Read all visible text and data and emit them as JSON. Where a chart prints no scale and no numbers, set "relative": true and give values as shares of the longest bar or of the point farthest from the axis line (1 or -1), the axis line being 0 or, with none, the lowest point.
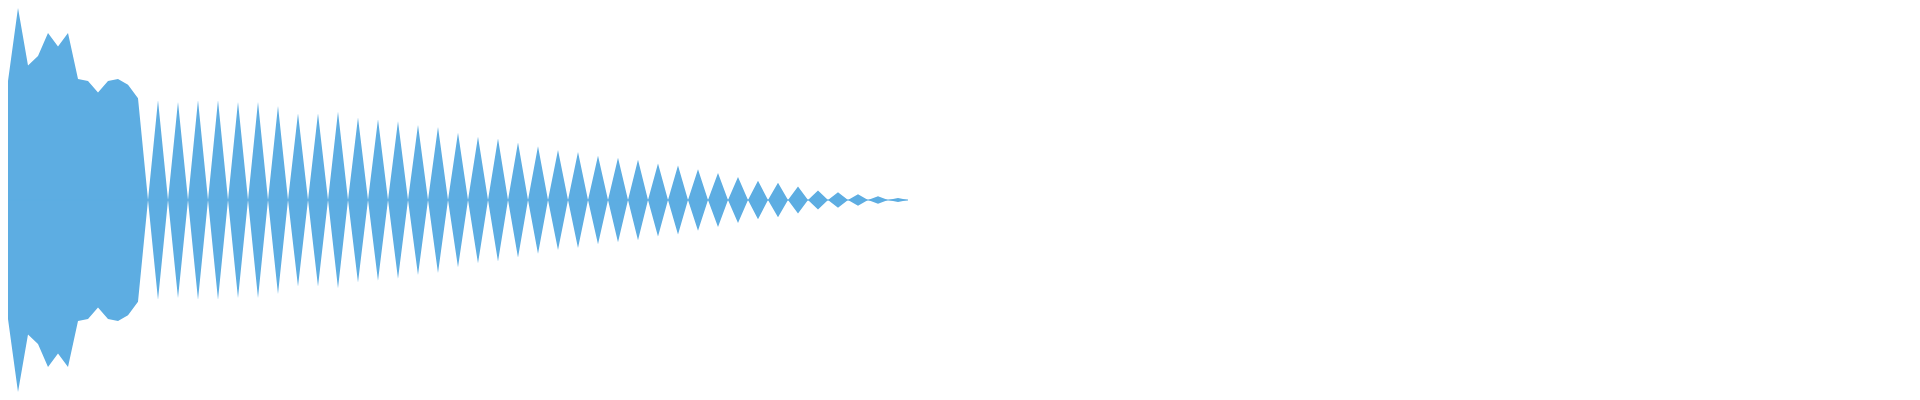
{
  "chart_data": {
    "type": "area",
    "relative": true,
    "ref_lines": [
      {
        "axis": "y",
        "value": 0,
        "color": "#5dade2"
      }
    ],
    "categories": [
      null,
      null,
      null,
      null,
      null,
      null,
      null,
      null,
      null,
      null,
      null,
      null,
      null,
      null,
      null,
      null,
      null,
      null,
      null,
      null,
      null,
      null,
      null,
      null,
      null,
      null,
      null,
      null,
      null,
      null,
      null,
      null,
      null,
      null,
      null,
      null,
      null,
      null,
      null,
      null,
      null,
      null,
      null,
      null,
      null,
      null,
      null,
      null,
      null,
      null,
      null,
      null,
      null,
      null,
      null,
      null,
      null,
      null,
      null,
      null,
      null,
      null,
      null,
      null,
      null,
      null,
      null,
      null,
      null,
      null,
      null,
      null,
      null,
      null,
      null,
      null,
      null,
      null,
      null,
      null,
      null,
      null,
      null,
      null,
      null,
      null,
      null,
      null,
      null,
      null,
      null
    ],
    "series": [
      {
        "color": "#5dade2",
        "values": [
          0.62,
          1.0,
          0.7,
          0.75,
          0.87,
          0.8,
          0.87,
          0.63,
          0.62,
          0.56,
          0.62,
          0.63,
          0.6,
          0.53,
          0,
          0.52,
          0,
          0.51,
          0,
          0.52,
          0,
          0.52,
          0,
          0.51,
          0,
          0.51,
          0,
          0.49,
          0,
          0.45,
          0,
          0.45,
          0,
          0.46,
          0,
          0.43,
          0,
          0.42,
          0,
          0.41,
          0,
          0.39,
          0,
          0.38,
          0,
          0.35,
          0,
          0.33,
          0,
          0.32,
          0,
          0.3,
          0,
          0.28,
          0,
          0.26,
          0,
          0.25,
          0,
          0.23,
          0,
          0.22,
          0,
          0.21,
          0,
          0.19,
          0,
          0.18,
          0,
          0.16,
          0,
          0.14,
          0,
          0.12,
          0,
          0.1,
          0,
          0.09,
          0,
          0.07,
          0,
          0.05,
          0,
          0.04,
          0,
          0.03,
          0,
          0.02,
          0,
          0.01,
          0
        ]
      },
      {
        "color": "#5dade2",
        "values": [
          -0.62,
          -1.0,
          -0.7,
          -0.75,
          -0.87,
          -0.8,
          -0.87,
          -0.63,
          -0.62,
          -0.56,
          -0.62,
          -0.63,
          -0.6,
          -0.53,
          0,
          -0.52,
          0,
          -0.51,
          0,
          -0.52,
          0,
          -0.52,
          0,
          -0.51,
          0,
          -0.51,
          0,
          -0.49,
          0,
          -0.45,
          0,
          -0.45,
          0,
          -0.46,
          0,
          -0.43,
          0,
          -0.42,
          0,
          -0.41,
          0,
          -0.39,
          0,
          -0.38,
          0,
          -0.35,
          0,
          -0.33,
          0,
          -0.32,
          0,
          -0.3,
          0,
          -0.28,
          0,
          -0.26,
          0,
          -0.25,
          0,
          -0.23,
          0,
          -0.22,
          0,
          -0.21,
          0,
          -0.19,
          0,
          -0.18,
          0,
          -0.16,
          0,
          -0.14,
          0,
          -0.12,
          0,
          -0.1,
          0,
          -0.09,
          0,
          -0.07,
          0,
          -0.05,
          0,
          -0.04,
          0,
          -0.03,
          0,
          -0.02,
          0,
          -0.01,
          0
        ]
      }
    ]
  }
}
